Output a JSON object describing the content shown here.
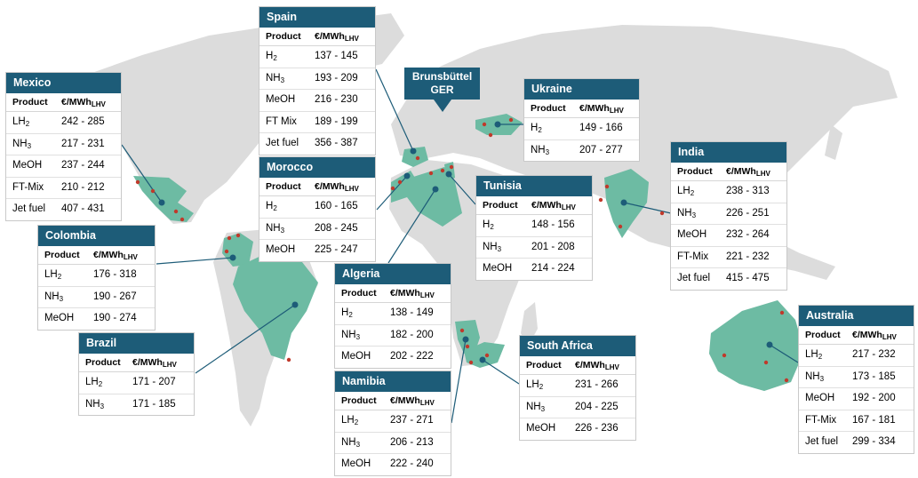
{
  "callout": {
    "line1": "Brunsbüttel",
    "line2": "GER"
  },
  "col_product": "Product",
  "col_cost": "€/MWh",
  "col_cost_sub": "LHV",
  "countries": [
    {
      "id": "mexico",
      "name": "Mexico",
      "rows": [
        {
          "product": "LH",
          "sub": "2",
          "cost": "242 - 285"
        },
        {
          "product": "NH",
          "sub": "3",
          "cost": "217 - 231"
        },
        {
          "product": "MeOH",
          "sub": "",
          "cost": "237 - 244"
        },
        {
          "product": "FT-Mix",
          "sub": "",
          "cost": "210 - 212"
        },
        {
          "product": "Jet fuel",
          "sub": "",
          "cost": "407 - 431"
        }
      ]
    },
    {
      "id": "spain",
      "name": "Spain",
      "rows": [
        {
          "product": "H",
          "sub": "2",
          "cost": "137 - 145"
        },
        {
          "product": "NH",
          "sub": "3",
          "cost": "193 - 209"
        },
        {
          "product": "MeOH",
          "sub": "",
          "cost": "216 - 230"
        },
        {
          "product": "FT Mix",
          "sub": "",
          "cost": "189 - 199"
        },
        {
          "product": "Jet fuel",
          "sub": "",
          "cost": "356 - 387"
        }
      ]
    },
    {
      "id": "morocco",
      "name": "Morocco",
      "rows": [
        {
          "product": "H",
          "sub": "2",
          "cost": "160 - 165"
        },
        {
          "product": "NH",
          "sub": "3",
          "cost": "208 - 245"
        },
        {
          "product": "MeOH",
          "sub": "",
          "cost": "225 - 247"
        }
      ]
    },
    {
      "id": "ukraine",
      "name": "Ukraine",
      "rows": [
        {
          "product": "H",
          "sub": "2",
          "cost": "149 - 166"
        },
        {
          "product": "NH",
          "sub": "3",
          "cost": "207 - 277"
        }
      ]
    },
    {
      "id": "india",
      "name": "India",
      "rows": [
        {
          "product": "LH",
          "sub": "2",
          "cost": "238 - 313"
        },
        {
          "product": "NH",
          "sub": "3",
          "cost": "226 - 251"
        },
        {
          "product": "MeOH",
          "sub": "",
          "cost": "232 - 264"
        },
        {
          "product": "FT-Mix",
          "sub": "",
          "cost": "221 - 232"
        },
        {
          "product": "Jet fuel",
          "sub": "",
          "cost": "415 - 475"
        }
      ]
    },
    {
      "id": "tunisia",
      "name": "Tunisia",
      "rows": [
        {
          "product": "H",
          "sub": "2",
          "cost": "148 - 156"
        },
        {
          "product": "NH",
          "sub": "3",
          "cost": "201 - 208"
        },
        {
          "product": "MeOH",
          "sub": "",
          "cost": "214 - 224"
        }
      ]
    },
    {
      "id": "colombia",
      "name": "Colombia",
      "rows": [
        {
          "product": "LH",
          "sub": "2",
          "cost": "176 - 318"
        },
        {
          "product": "NH",
          "sub": "3",
          "cost": "190 - 267"
        },
        {
          "product": "MeOH",
          "sub": "",
          "cost": "190 - 274"
        }
      ]
    },
    {
      "id": "algeria",
      "name": "Algeria",
      "rows": [
        {
          "product": "H",
          "sub": "2",
          "cost": "138 - 149"
        },
        {
          "product": "NH",
          "sub": "3",
          "cost": "182 - 200"
        },
        {
          "product": "MeOH",
          "sub": "",
          "cost": "202 - 222"
        }
      ]
    },
    {
      "id": "brazil",
      "name": "Brazil",
      "rows": [
        {
          "product": "LH",
          "sub": "2",
          "cost": "171 - 207"
        },
        {
          "product": "NH",
          "sub": "3",
          "cost": "171 - 185"
        }
      ]
    },
    {
      "id": "namibia",
      "name": "Namibia",
      "rows": [
        {
          "product": "LH",
          "sub": "2",
          "cost": "237 - 271"
        },
        {
          "product": "NH",
          "sub": "3",
          "cost": "206 - 213"
        },
        {
          "product": "MeOH",
          "sub": "",
          "cost": "222 - 240"
        }
      ]
    },
    {
      "id": "south-africa",
      "name": "South Africa",
      "rows": [
        {
          "product": "LH",
          "sub": "2",
          "cost": "231 - 266"
        },
        {
          "product": "NH",
          "sub": "3",
          "cost": "204 - 225"
        },
        {
          "product": "MeOH",
          "sub": "",
          "cost": "226 - 236"
        }
      ]
    },
    {
      "id": "australia",
      "name": "Australia",
      "rows": [
        {
          "product": "LH",
          "sub": "2",
          "cost": "217 - 232"
        },
        {
          "product": "NH",
          "sub": "3",
          "cost": "173 - 185"
        },
        {
          "product": "MeOH",
          "sub": "",
          "cost": "192 - 200"
        },
        {
          "product": "FT-Mix",
          "sub": "",
          "cost": "167 - 181"
        },
        {
          "product": "Jet fuel",
          "sub": "",
          "cost": "299 - 334"
        }
      ]
    }
  ]
}
